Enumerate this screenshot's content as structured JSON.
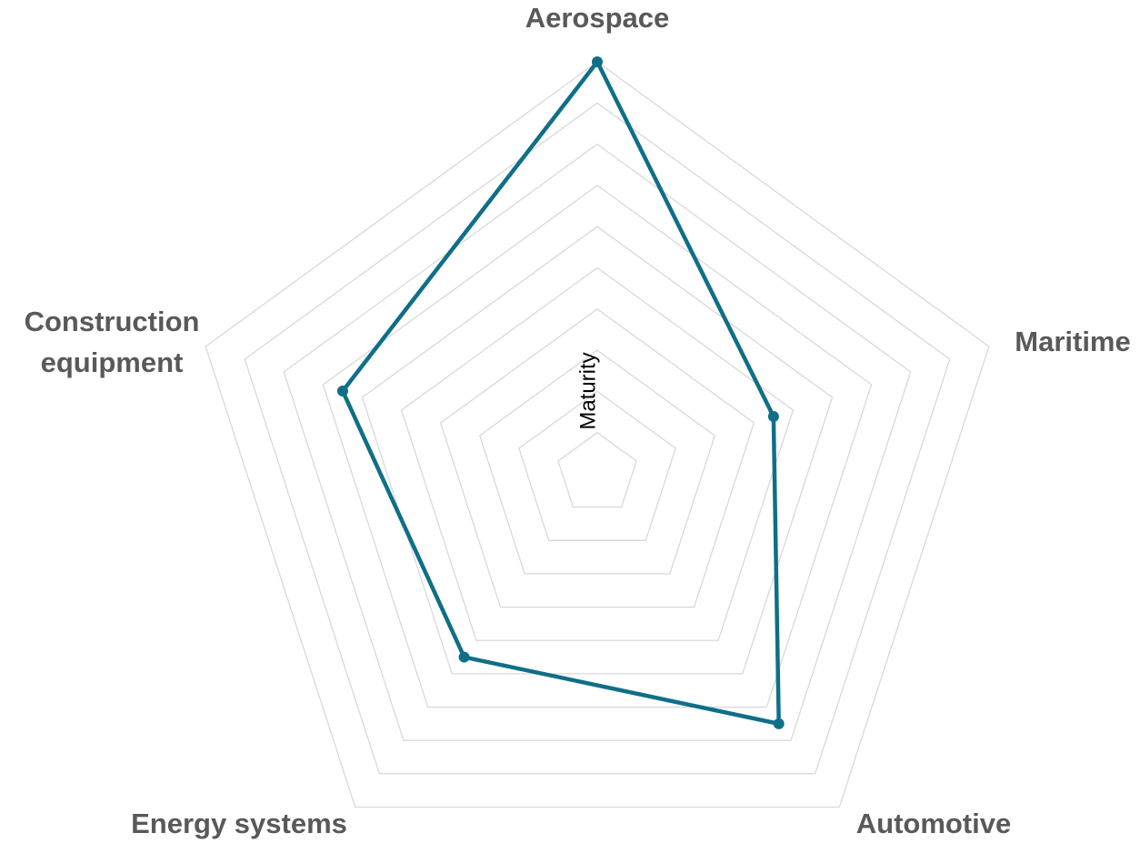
{
  "chart_data": {
    "type": "radar",
    "categories": [
      "Aerospace",
      "Maritime",
      "Automotive",
      "Energy systems",
      "Construction equipment"
    ],
    "series": [
      {
        "color": "#0f6f88",
        "values": [
          10,
          4.5,
          7.5,
          5.5,
          6.5
        ]
      }
    ],
    "axis_title": "Maturity",
    "ylim": [
      0,
      10
    ],
    "yticks": [
      0,
      1,
      2,
      3,
      4,
      5,
      6,
      7,
      8,
      9,
      10
    ],
    "grid": true
  }
}
